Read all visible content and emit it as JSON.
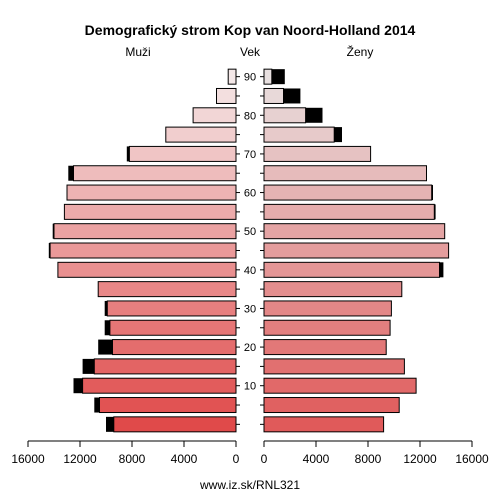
{
  "chart_data": {
    "type": "bar",
    "title": "Demografický strom Kop van Noord-Holland 2014",
    "left_label": "Muži",
    "center_label": "Vek",
    "right_label": "Ženy",
    "footer": "www.iz.sk/RNL321",
    "age_ticks": [
      "10",
      "20",
      "30",
      "40",
      "50",
      "60",
      "70",
      "80",
      "90"
    ],
    "axis_ticks_left": [
      "16000",
      "12000",
      "8000",
      "4000",
      "0"
    ],
    "axis_ticks_right": [
      "0",
      "4000",
      "8000",
      "12000",
      "16000"
    ],
    "xlim": [
      0,
      16000
    ],
    "age_groups": [
      "0-4",
      "5-9",
      "10-14",
      "15-19",
      "20-24",
      "25-29",
      "30-34",
      "35-39",
      "40-44",
      "45-49",
      "50-54",
      "55-59",
      "60-64",
      "65-69",
      "70-74",
      "75-79",
      "80-84",
      "85-89",
      "90-94"
    ],
    "series": [
      {
        "name": "Muži",
        "values": [
          9400,
          10500,
          11800,
          10900,
          9500,
          9700,
          9900,
          10600,
          13700,
          14300,
          14000,
          13200,
          13000,
          12500,
          8200,
          5400,
          3300,
          1500,
          600
        ],
        "surplus": [
          600,
          400,
          700,
          900,
          1100,
          400,
          200,
          0,
          0,
          100,
          100,
          0,
          0,
          400,
          200,
          0,
          0,
          0,
          0
        ]
      },
      {
        "name": "Ženy",
        "values": [
          9200,
          10400,
          11700,
          10800,
          9400,
          9700,
          9800,
          10600,
          13500,
          14200,
          13900,
          13100,
          12900,
          12500,
          8200,
          5400,
          3200,
          1500,
          600
        ],
        "surplus": [
          0,
          0,
          0,
          0,
          0,
          0,
          0,
          0,
          300,
          0,
          0,
          100,
          100,
          0,
          0,
          600,
          1300,
          1300,
          1000
        ]
      }
    ]
  }
}
